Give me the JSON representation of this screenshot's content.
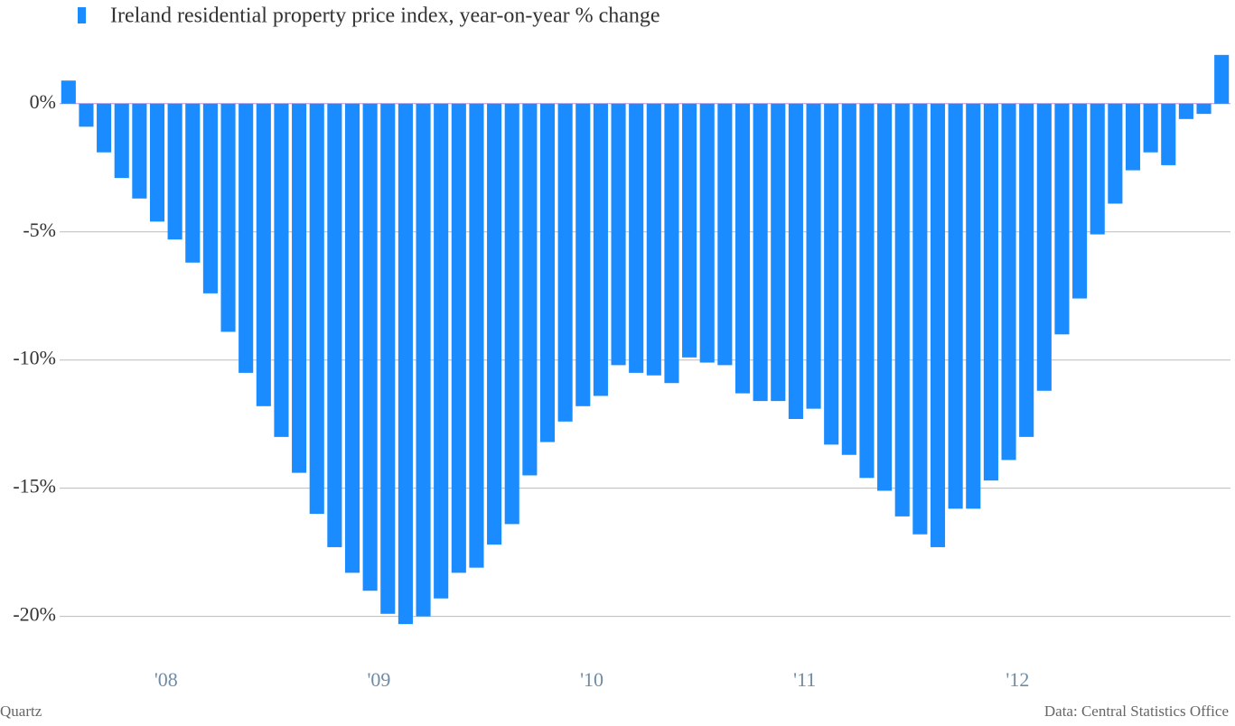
{
  "chart_data": {
    "type": "bar",
    "title": "Ireland residential property price index, year-on-year % change",
    "branding": "Quartz",
    "source": "Data: Central Statistics Office",
    "color": "#1a8cff",
    "categories": [
      null,
      null,
      null,
      null,
      null,
      null,
      "'08",
      null,
      null,
      null,
      null,
      null,
      null,
      null,
      null,
      null,
      null,
      null,
      "'09",
      null,
      null,
      null,
      null,
      null,
      null,
      null,
      null,
      null,
      null,
      null,
      "'10",
      null,
      null,
      null,
      null,
      null,
      null,
      null,
      null,
      null,
      null,
      null,
      "'11",
      null,
      null,
      null,
      null,
      null,
      null,
      null,
      null,
      null,
      null,
      null,
      "'12",
      null,
      null,
      null,
      null,
      null,
      null,
      null,
      null,
      null,
      null,
      null
    ],
    "values": [
      0.9,
      -0.9,
      -1.9,
      -2.9,
      -3.7,
      -4.6,
      -5.3,
      -6.2,
      -7.4,
      -8.9,
      -10.5,
      -11.8,
      -13.0,
      -14.4,
      -16.0,
      -17.3,
      -18.3,
      -19.0,
      -19.9,
      -20.3,
      -20.0,
      -19.3,
      -18.3,
      -18.1,
      -17.2,
      -16.4,
      -14.5,
      -13.2,
      -12.4,
      -11.8,
      -11.4,
      -10.2,
      -10.5,
      -10.6,
      -10.9,
      -9.9,
      -10.1,
      -10.2,
      -11.3,
      -11.6,
      -11.6,
      -12.3,
      -11.9,
      -13.3,
      -13.7,
      -14.6,
      -15.1,
      -16.1,
      -16.8,
      -17.3,
      -15.8,
      -15.8,
      -14.7,
      -13.9,
      -13.0,
      -11.2,
      -9.0,
      -7.6,
      -5.1,
      -3.9,
      -2.6,
      -1.9,
      -2.4,
      -0.6,
      -0.4,
      1.9
    ],
    "ylim": [
      -21,
      2
    ],
    "yticks": [
      {
        "value": 0,
        "label": "0%"
      },
      {
        "value": -5,
        "label": "-5%"
      },
      {
        "value": -10,
        "label": "-10%"
      },
      {
        "value": -15,
        "label": "-15%"
      },
      {
        "value": -20,
        "label": "-20%"
      }
    ],
    "grid": true
  }
}
